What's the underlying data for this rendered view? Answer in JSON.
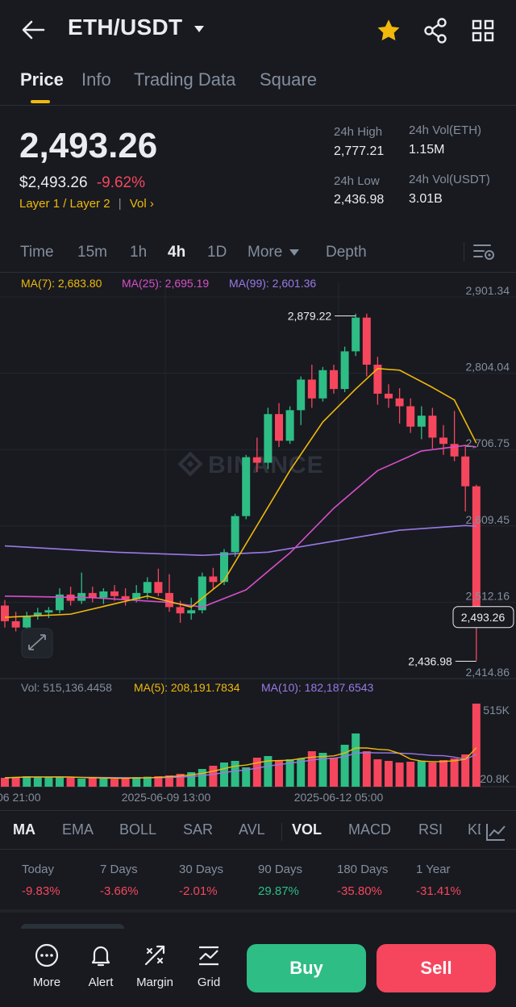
{
  "header": {
    "pair": "ETH/USDT",
    "tabs": [
      "Price",
      "Info",
      "Trading Data",
      "Square"
    ],
    "watermark": "BINANCE"
  },
  "ticker": {
    "last_price": "2,493.26",
    "usd_price": "$2,493.26",
    "change": "-9.62%",
    "tag_1": "Layer 1 / Layer 2",
    "tag_2": "Vol",
    "high_label": "24h High",
    "high": "2,777.21",
    "low_label": "24h Low",
    "low": "2,436.98",
    "vol_eth_label": "24h Vol(ETH)",
    "vol_eth": "1.15M",
    "vol_usdt_label": "24h Vol(USDT)",
    "vol_usdt": "3.01B"
  },
  "intervals": [
    "Time",
    "15m",
    "1h",
    "4h",
    "1D",
    "More",
    "Depth"
  ],
  "active_interval": "4h",
  "ma_legend": {
    "ma7": "MA(7): 2,683.80",
    "ma25": "MA(25): 2,695.19",
    "ma99": "MA(99): 2,601.36"
  },
  "vol_legend": {
    "vol": "Vol: 515,136.4458",
    "ma5": "MA(5): 208,191.7834",
    "ma10": "MA(10): 182,187.6543"
  },
  "chart_data": {
    "type": "candlestick",
    "price_axis": [
      "2,901.34",
      "2,804.04",
      "2,706.75",
      "2,609.45",
      "2,512.16",
      "2,414.86"
    ],
    "ylim": [
      2414.86,
      2901.34
    ],
    "volume_axis": [
      "515K",
      "20.8K"
    ],
    "time_labels": [
      "06 21:00",
      "2025-06-09 13:00",
      "2025-06-12 05:00"
    ],
    "high_marker": "2,879.22",
    "low_marker": "2,436.98",
    "last_price_tag": "2,493.26",
    "candles": [
      [
        2508,
        2515,
        2480,
        2488
      ],
      [
        2488,
        2500,
        2475,
        2480
      ],
      [
        2480,
        2500,
        2476,
        2495
      ],
      [
        2495,
        2505,
        2490,
        2499
      ],
      [
        2499,
        2506,
        2492,
        2502
      ],
      [
        2502,
        2530,
        2498,
        2522
      ],
      [
        2522,
        2532,
        2508,
        2514
      ],
      [
        2514,
        2550,
        2510,
        2524
      ],
      [
        2524,
        2532,
        2512,
        2518
      ],
      [
        2518,
        2530,
        2510,
        2526
      ],
      [
        2526,
        2534,
        2514,
        2520
      ],
      [
        2520,
        2530,
        2508,
        2516
      ],
      [
        2516,
        2534,
        2512,
        2524
      ],
      [
        2524,
        2544,
        2516,
        2538
      ],
      [
        2538,
        2555,
        2520,
        2524
      ],
      [
        2524,
        2548,
        2500,
        2506
      ],
      [
        2506,
        2514,
        2486,
        2498
      ],
      [
        2498,
        2518,
        2490,
        2502
      ],
      [
        2502,
        2550,
        2498,
        2545
      ],
      [
        2545,
        2556,
        2528,
        2538
      ],
      [
        2538,
        2580,
        2534,
        2576
      ],
      [
        2576,
        2625,
        2570,
        2622
      ],
      [
        2622,
        2700,
        2618,
        2697
      ],
      [
        2697,
        2722,
        2678,
        2690
      ],
      [
        2690,
        2760,
        2682,
        2752
      ],
      [
        2752,
        2766,
        2710,
        2718
      ],
      [
        2718,
        2762,
        2714,
        2757
      ],
      [
        2757,
        2800,
        2738,
        2796
      ],
      [
        2796,
        2815,
        2760,
        2772
      ],
      [
        2772,
        2812,
        2768,
        2808
      ],
      [
        2808,
        2815,
        2778,
        2784
      ],
      [
        2784,
        2838,
        2780,
        2832
      ],
      [
        2832,
        2880,
        2826,
        2875
      ],
      [
        2875,
        2880,
        2800,
        2815
      ],
      [
        2815,
        2825,
        2764,
        2778
      ],
      [
        2778,
        2790,
        2760,
        2772
      ],
      [
        2772,
        2785,
        2740,
        2762
      ],
      [
        2762,
        2772,
        2728,
        2736
      ],
      [
        2736,
        2762,
        2720,
        2750
      ],
      [
        2750,
        2760,
        2708,
        2722
      ],
      [
        2722,
        2738,
        2700,
        2714
      ],
      [
        2714,
        2756,
        2692,
        2698
      ],
      [
        2698,
        2712,
        2628,
        2660
      ],
      [
        2660,
        2662,
        2438,
        2493
      ]
    ],
    "volumes": [
      55,
      60,
      65,
      62,
      60,
      58,
      55,
      50,
      55,
      52,
      48,
      55,
      60,
      62,
      65,
      70,
      80,
      90,
      110,
      130,
      150,
      160,
      120,
      180,
      190,
      160,
      170,
      175,
      220,
      210,
      180,
      260,
      330,
      220,
      170,
      160,
      150,
      155,
      160,
      150,
      165,
      175,
      200,
      515
    ],
    "ma7_line": [
      [
        0,
        2493
      ],
      [
        6,
        2497
      ],
      [
        13,
        2520
      ],
      [
        17,
        2506
      ],
      [
        20,
        2540
      ],
      [
        23,
        2610
      ],
      [
        26,
        2680
      ],
      [
        29,
        2742
      ],
      [
        32,
        2784
      ],
      [
        34,
        2810
      ],
      [
        36,
        2808
      ],
      [
        39,
        2786
      ],
      [
        41,
        2770
      ],
      [
        43,
        2715
      ]
    ],
    "ma25_line": [
      [
        0,
        2520
      ],
      [
        8,
        2518
      ],
      [
        15,
        2512
      ],
      [
        18,
        2506
      ],
      [
        22,
        2528
      ],
      [
        26,
        2575
      ],
      [
        30,
        2632
      ],
      [
        34,
        2680
      ],
      [
        38,
        2705
      ],
      [
        42,
        2712
      ],
      [
        43,
        2710
      ]
    ],
    "ma99_line": [
      [
        0,
        2584
      ],
      [
        10,
        2576
      ],
      [
        18,
        2572
      ],
      [
        24,
        2576
      ],
      [
        30,
        2590
      ],
      [
        36,
        2604
      ],
      [
        42,
        2610
      ],
      [
        43,
        2609
      ]
    ]
  },
  "indicators": [
    "MA",
    "EMA",
    "BOLL",
    "SAR",
    "AVL",
    "VOL",
    "MACD",
    "RSI",
    "KDJ"
  ],
  "active_main": "MA",
  "active_sub": "VOL",
  "performance": [
    {
      "label": "Today",
      "value": "-9.83%",
      "dir": "down"
    },
    {
      "label": "7 Days",
      "value": "-3.66%",
      "dir": "down"
    },
    {
      "label": "30 Days",
      "value": "-2.01%",
      "dir": "down"
    },
    {
      "label": "90 Days",
      "value": "29.87%",
      "dir": "up"
    },
    {
      "label": "180 Days",
      "value": "-35.80%",
      "dir": "down"
    },
    {
      "label": "1 Year",
      "value": "-31.41%",
      "dir": "down"
    }
  ],
  "bottom_nav": {
    "more": "More",
    "alert": "Alert",
    "margin": "Margin",
    "grid": "Grid",
    "buy": "Buy",
    "sell": "Sell"
  },
  "colors": {
    "up": "#2ebd85",
    "down": "#f6465d",
    "accent": "#f0b90b",
    "ma7": "#f0b90b",
    "ma25": "#d84fc9",
    "ma99": "#9b79e6",
    "bg": "#181a20"
  }
}
